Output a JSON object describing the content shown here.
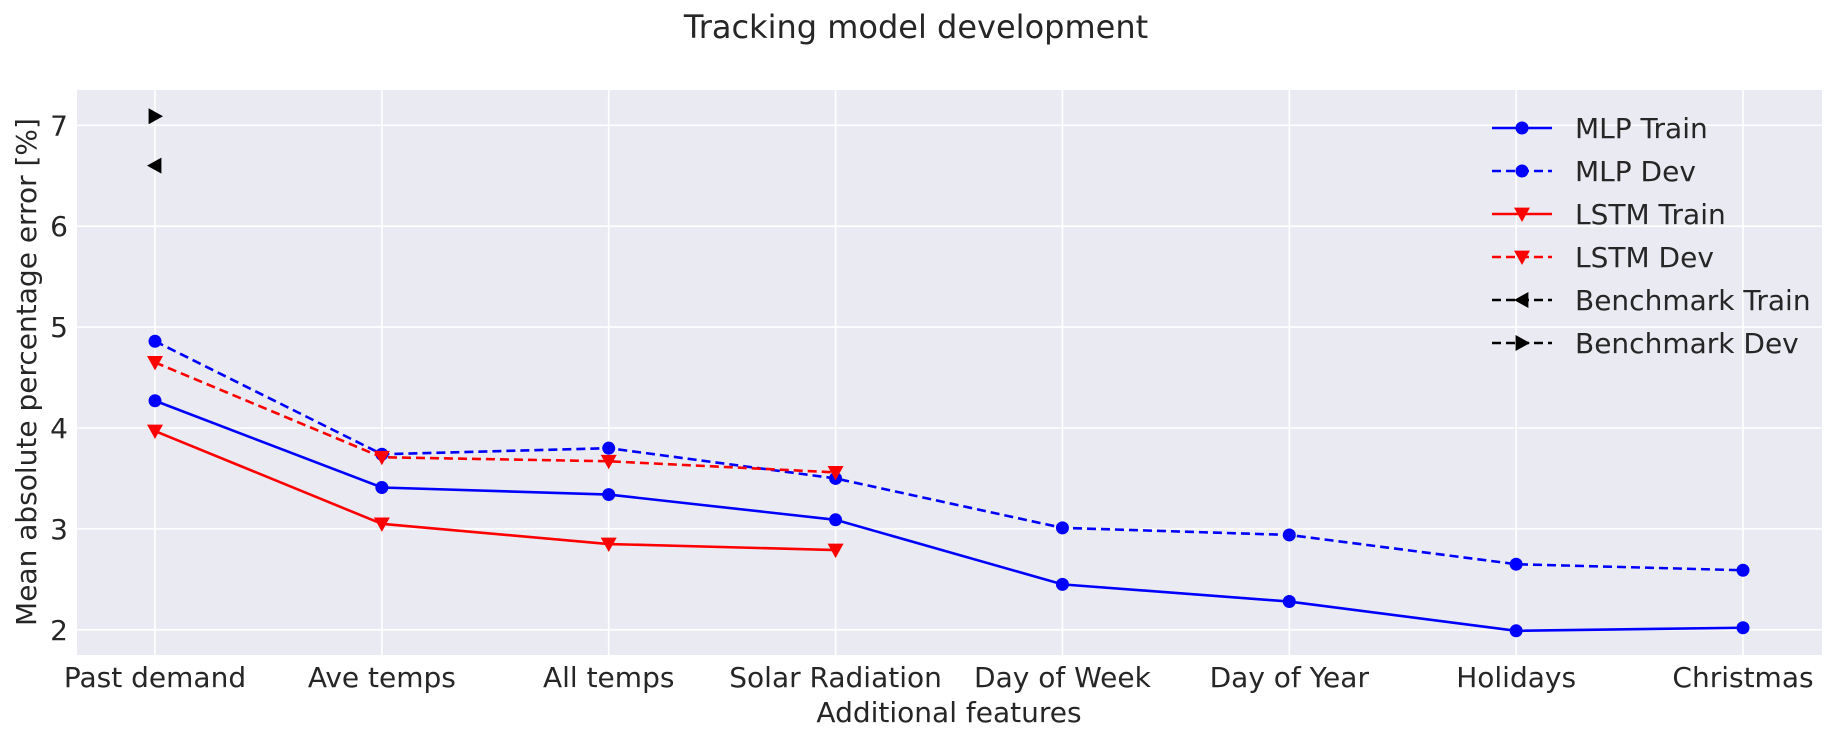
{
  "chart_data": {
    "type": "line",
    "title": "Tracking model development",
    "xlabel": "Additional features",
    "ylabel": "Mean absolute percentage error [%]",
    "categories": [
      "Past demand",
      "Ave temps",
      "All temps",
      "Solar Radiation",
      "Day of Week",
      "Day of Year",
      "Holidays",
      "Christmas"
    ],
    "ylim": [
      1.75,
      7.35
    ],
    "yticks": [
      2,
      3,
      4,
      5,
      6,
      7
    ],
    "grid": true,
    "legend_position": "top-right",
    "series": [
      {
        "name": "MLP Train",
        "color": "#0000ff",
        "dash": "solid",
        "marker": "circle",
        "values": [
          4.27,
          3.41,
          3.34,
          3.09,
          2.45,
          2.28,
          1.99,
          2.02
        ]
      },
      {
        "name": "MLP Dev",
        "color": "#0000ff",
        "dash": "dashed",
        "marker": "circle",
        "values": [
          4.86,
          3.74,
          3.8,
          3.5,
          3.01,
          2.94,
          2.65,
          2.59
        ]
      },
      {
        "name": "LSTM Train",
        "color": "#ff0000",
        "dash": "solid",
        "marker": "triangle-down",
        "values": [
          3.97,
          3.05,
          2.85,
          2.79,
          null,
          null,
          null,
          null
        ]
      },
      {
        "name": "LSTM Dev",
        "color": "#ff0000",
        "dash": "dashed",
        "marker": "triangle-down",
        "values": [
          4.65,
          3.71,
          3.67,
          3.56,
          null,
          null,
          null,
          null
        ]
      },
      {
        "name": "Benchmark Train",
        "color": "#000000",
        "dash": "dashed",
        "marker": "triangle-left",
        "values": [
          6.6,
          null,
          null,
          null,
          null,
          null,
          null,
          null
        ]
      },
      {
        "name": "Benchmark Dev",
        "color": "#000000",
        "dash": "dashed",
        "marker": "triangle-right",
        "values": [
          7.09,
          null,
          null,
          null,
          null,
          null,
          null,
          null
        ]
      }
    ]
  }
}
